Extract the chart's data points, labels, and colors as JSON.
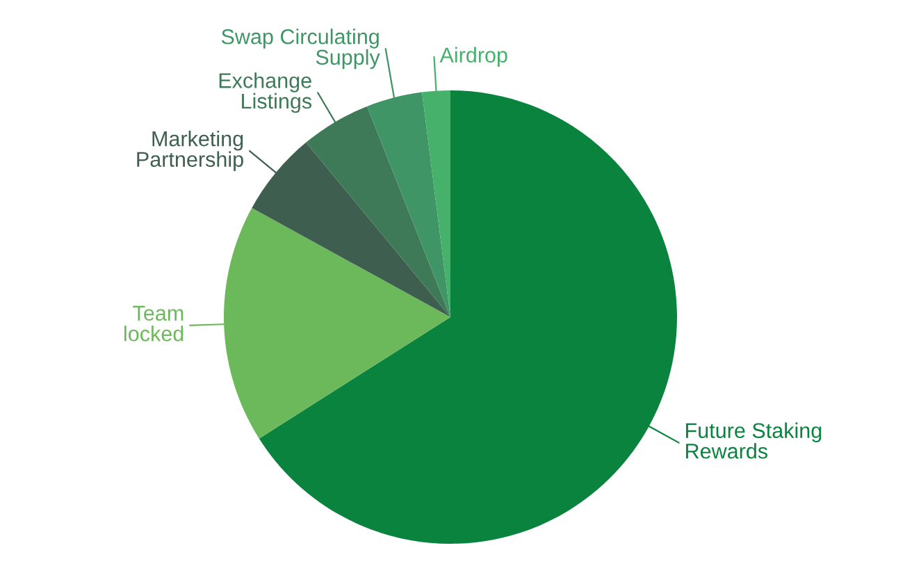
{
  "chart_data": {
    "type": "pie",
    "categories": [
      "Future Staking Rewards",
      "Team locked",
      "Marketing Partnership",
      "Exchange Listings",
      "Swap Circulating Supply",
      "Airdrop"
    ],
    "values": [
      66,
      17,
      6,
      5,
      4,
      2
    ],
    "colors": [
      "#0a833e",
      "#6bb95a",
      "#3e5f4f",
      "#3e7a58",
      "#3f9566",
      "#45b16a"
    ]
  }
}
